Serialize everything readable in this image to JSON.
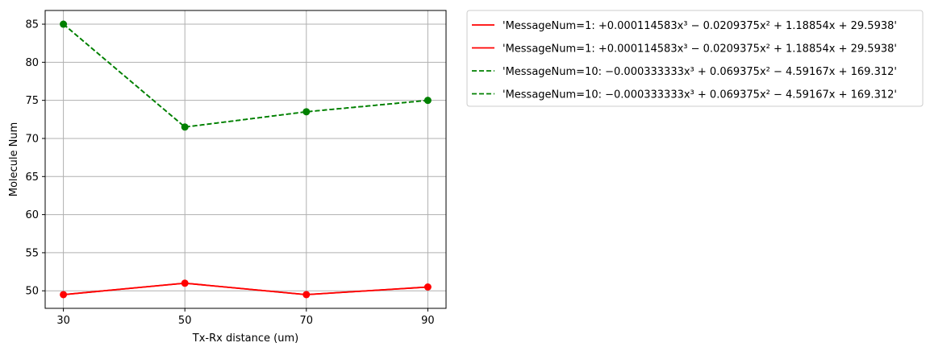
{
  "chart_data": {
    "type": "line",
    "title": "",
    "xlabel": "Tx-Rx distance (um)",
    "ylabel": "Molecule Num",
    "x": [
      30,
      50,
      70,
      90
    ],
    "xticks": [
      "30",
      "50",
      "70",
      "90"
    ],
    "yticks": [
      "50",
      "55",
      "60",
      "65",
      "70",
      "75",
      "80",
      "85"
    ],
    "xlim": [
      27,
      93
    ],
    "ylim": [
      47.7,
      86.8
    ],
    "grid": true,
    "legend_position": "outside-right",
    "series": [
      {
        "name": "'MessageNum=1: +0.000114583x³ − 0.0209375x² + 1.18854x + 29.5938'",
        "values": [
          49.5,
          51.0,
          49.5,
          50.5
        ],
        "color": "#ff0000",
        "style": "solid",
        "markers": true
      },
      {
        "name": "'MessageNum=1: +0.000114583x³ − 0.0209375x² + 1.18854x + 29.5938'",
        "values": [
          49.5,
          51.0,
          49.5,
          50.5
        ],
        "color": "#ff0000",
        "style": "solid",
        "markers": false
      },
      {
        "name": "'MessageNum=10: −0.000333333x³ + 0.069375x² − 4.59167x + 169.312'",
        "values": [
          85.0,
          71.5,
          73.5,
          75.0
        ],
        "color": "#008000",
        "style": "dashed",
        "markers": true
      },
      {
        "name": "'MessageNum=10: −0.000333333x³ + 0.069375x² − 4.59167x + 169.312'",
        "values": [
          85.0,
          71.5,
          73.5,
          75.0
        ],
        "color": "#008000",
        "style": "dashed",
        "markers": false
      }
    ]
  }
}
